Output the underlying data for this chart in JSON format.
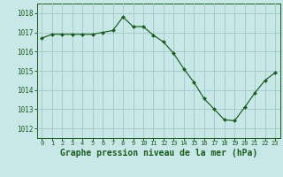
{
  "x": [
    0,
    1,
    2,
    3,
    4,
    5,
    6,
    7,
    8,
    9,
    10,
    11,
    12,
    13,
    14,
    15,
    16,
    17,
    18,
    19,
    20,
    21,
    22,
    23
  ],
  "y": [
    1016.7,
    1016.9,
    1016.9,
    1016.9,
    1016.9,
    1016.9,
    1017.0,
    1017.1,
    1017.8,
    1017.3,
    1017.3,
    1016.85,
    1016.5,
    1015.9,
    1015.1,
    1014.4,
    1013.55,
    1013.0,
    1012.45,
    1012.4,
    1013.1,
    1013.85,
    1014.5,
    1014.9
  ],
  "line_color": "#1a5c1a",
  "marker_color": "#1a5c1a",
  "bg_color": "#c8e8e8",
  "grid_color": "#a0c8c8",
  "title": "Graphe pression niveau de la mer (hPa)",
  "ylim_min": 1011.5,
  "ylim_max": 1018.5,
  "xlim_min": -0.5,
  "xlim_max": 23.5,
  "yticks": [
    1012,
    1013,
    1014,
    1015,
    1016,
    1017,
    1018
  ],
  "xticks": [
    0,
    1,
    2,
    3,
    4,
    5,
    6,
    7,
    8,
    9,
    10,
    11,
    12,
    13,
    14,
    15,
    16,
    17,
    18,
    19,
    20,
    21,
    22,
    23
  ]
}
